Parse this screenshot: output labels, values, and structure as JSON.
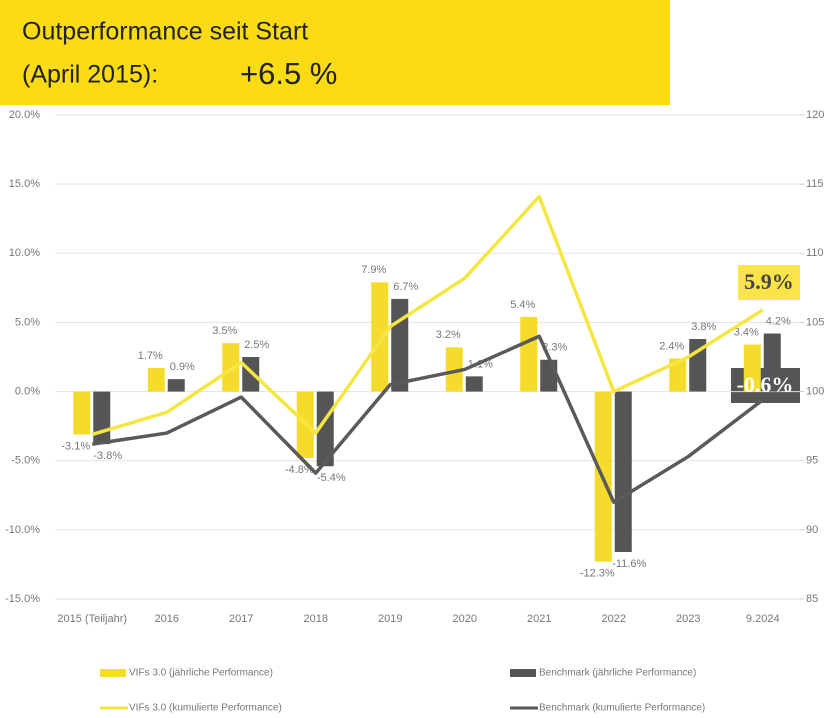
{
  "banner": {
    "title": "Outperformance seit Start",
    "subtitle": "(April 2015):",
    "value": "+6.5 %"
  },
  "chart_data": {
    "type": "bar",
    "categories": [
      "2015 (Teiljahr)",
      "2016",
      "2017",
      "2018",
      "2019",
      "2020",
      "2021",
      "2022",
      "2023",
      "9.2024"
    ],
    "series": [
      {
        "name": "VIFs 3.0 (jährliche Performance)",
        "type": "bar",
        "color": "#f5dc2c",
        "values": [
          -3.1,
          1.7,
          3.5,
          -4.8,
          7.9,
          3.2,
          5.4,
          -12.3,
          2.4,
          3.4
        ],
        "value_labels": [
          "-3.1%",
          "1.7%",
          "3.5%",
          "-4.8%",
          "7.9%",
          "3.2%",
          "5.4%",
          "-12.3%",
          "2.4%",
          "3.4%"
        ]
      },
      {
        "name": "Benchmark (jährliche Performance)",
        "type": "bar",
        "color": "#555555",
        "values": [
          -3.8,
          0.9,
          2.5,
          -5.4,
          6.7,
          1.1,
          2.3,
          -11.6,
          3.8,
          4.2
        ],
        "value_labels": [
          "-3.8%",
          "0.9%",
          "2.5%",
          "-5.4%",
          "6.7%",
          "1.1%",
          "2.3%",
          "-11.6%",
          "3.8%",
          "4.2%"
        ]
      },
      {
        "name": "VIFs 3.0 (kumulierte Performance)",
        "type": "line",
        "axis": "y2",
        "color": "#f5e642",
        "values": [
          96.9,
          98.5,
          102.1,
          97.0,
          104.7,
          108.2,
          114.1,
          100.0,
          102.5,
          105.9
        ]
      },
      {
        "name": "Benchmark (kumulierte Performance)",
        "type": "line",
        "axis": "y2",
        "color": "#5a5a5a",
        "values": [
          96.2,
          97.0,
          99.6,
          94.1,
          100.5,
          101.6,
          104.0,
          92.0,
          95.3,
          99.4
        ]
      }
    ],
    "ylim": [
      -15,
      20
    ],
    "yticks": [
      {
        "value": -15,
        "label": "-15.0%"
      },
      {
        "value": -10,
        "label": "-10.0%"
      },
      {
        "value": -5,
        "label": "-5.0%"
      },
      {
        "value": 0,
        "label": "0.0%"
      },
      {
        "value": 5,
        "label": "5.0%"
      },
      {
        "value": 10,
        "label": "10.0%"
      },
      {
        "value": 15,
        "label": "15.0%"
      },
      {
        "value": 20,
        "label": "20.0%"
      }
    ],
    "y2lim": [
      85,
      120
    ],
    "y2ticks": [
      85,
      90,
      95,
      100,
      105,
      110,
      115,
      120
    ],
    "grid": true,
    "annotations": [
      "5.9%",
      "-0.6%"
    ]
  }
}
